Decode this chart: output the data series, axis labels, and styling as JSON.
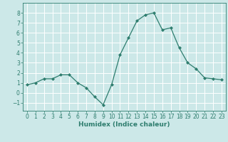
{
  "x": [
    0,
    1,
    2,
    3,
    4,
    5,
    6,
    7,
    8,
    9,
    10,
    11,
    12,
    13,
    14,
    15,
    16,
    17,
    18,
    19,
    20,
    21,
    22,
    23
  ],
  "y": [
    0.8,
    1.0,
    1.4,
    1.4,
    1.8,
    1.8,
    1.0,
    0.5,
    -0.4,
    -1.2,
    0.8,
    3.8,
    5.5,
    7.2,
    7.8,
    8.0,
    6.3,
    6.5,
    4.5,
    3.0,
    2.4,
    1.5,
    1.4,
    1.3
  ],
  "line_color": "#2e7d6e",
  "marker": "D",
  "marker_size": 2,
  "bg_color": "#cce8e8",
  "grid_color": "#ffffff",
  "xlabel": "Humidex (Indice chaleur)",
  "xlim": [
    -0.5,
    23.5
  ],
  "ylim": [
    -1.8,
    9.0
  ],
  "yticks": [
    -1,
    0,
    1,
    2,
    3,
    4,
    5,
    6,
    7,
    8
  ],
  "xticks": [
    0,
    1,
    2,
    3,
    4,
    5,
    6,
    7,
    8,
    9,
    10,
    11,
    12,
    13,
    14,
    15,
    16,
    17,
    18,
    19,
    20,
    21,
    22,
    23
  ],
  "label_fontsize": 6.5,
  "tick_fontsize": 5.5
}
